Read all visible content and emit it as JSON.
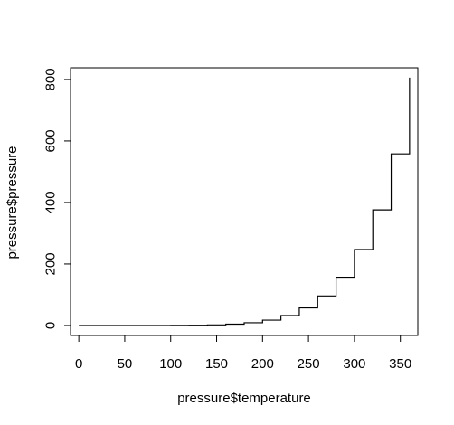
{
  "chart_data": {
    "type": "line",
    "step": "s",
    "title": "",
    "xlabel": "pressure$temperature",
    "ylabel": "pressure$pressure",
    "xlim": [
      -9,
      369
    ],
    "ylim": [
      -32.5,
      838
    ],
    "xticks": [
      0,
      50,
      100,
      150,
      200,
      250,
      300,
      350
    ],
    "yticks": [
      0,
      200,
      400,
      600,
      800
    ],
    "grid": false,
    "legend": "none",
    "series": [
      {
        "x": [
          0,
          20,
          40,
          60,
          80,
          100,
          120,
          140,
          160,
          180,
          200,
          220,
          240,
          260,
          280,
          300,
          320,
          340,
          360
        ],
        "y": [
          0.0002,
          0.0012,
          0.006,
          0.03,
          0.09,
          0.27,
          0.75,
          1.85,
          4.2,
          8.8,
          17.3,
          32.1,
          57,
          96,
          157,
          247,
          376,
          558,
          806
        ]
      }
    ],
    "colors": {
      "line": "#000000",
      "axis": "#000000",
      "background": "#ffffff"
    }
  }
}
